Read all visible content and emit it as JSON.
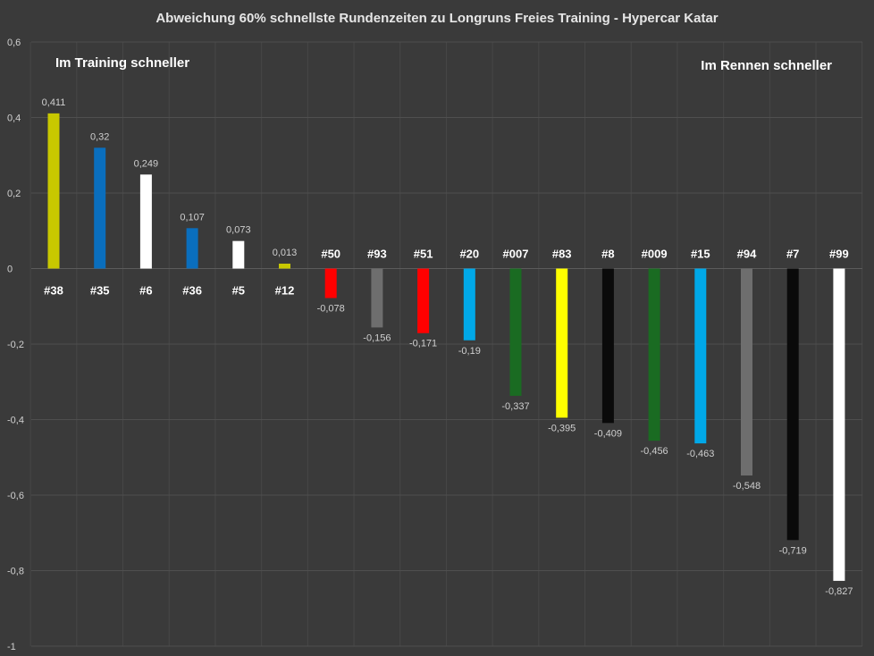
{
  "chart_data": {
    "type": "bar",
    "title": "Abweichung 60% schnellste Rundenzeiten zu Longruns Freies Training - Hypercar Katar",
    "xlabel": "",
    "ylabel": "",
    "ylim": [
      -1,
      0.6
    ],
    "yticks": [
      "0,6",
      "0,4",
      "0,2",
      "0",
      "-0,2",
      "-0,4",
      "-0,6",
      "-0,8",
      "-1"
    ],
    "ytick_values": [
      0.6,
      0.4,
      0.2,
      0,
      -0.2,
      -0.4,
      -0.6,
      -0.8,
      -1
    ],
    "grid": true,
    "legend": "none",
    "annotations": {
      "left": "Im Training schneller",
      "right": "Im Rennen schneller"
    },
    "categories": [
      "#38",
      "#35",
      "#6",
      "#36",
      "#5",
      "#12",
      "#50",
      "#93",
      "#51",
      "#20",
      "#007",
      "#83",
      "#8",
      "#009",
      "#15",
      "#94",
      "#7",
      "#99"
    ],
    "values": [
      0.411,
      0.32,
      0.249,
      0.107,
      0.073,
      0.013,
      -0.078,
      -0.156,
      -0.171,
      -0.19,
      -0.337,
      -0.395,
      -0.409,
      -0.456,
      -0.463,
      -0.548,
      -0.719,
      -0.827
    ],
    "value_labels": [
      "0,411",
      "0,32",
      "0,249",
      "0,107",
      "0,073",
      "0,013",
      "-0,078",
      "-0,156",
      "-0,171",
      "-0,19",
      "-0,337",
      "-0,395",
      "-0,409",
      "-0,456",
      "-0,463",
      "-0,548",
      "-0,719",
      "-0,827"
    ],
    "colors": [
      "#c8c800",
      "#0a6ebd",
      "#ffffff",
      "#0a6ebd",
      "#ffffff",
      "#c8c800",
      "#ff0000",
      "#6e6e6e",
      "#ff0000",
      "#00a8e8",
      "#1a6b22",
      "#ffff00",
      "#0a0a0a",
      "#1a6b22",
      "#00a8e8",
      "#6e6e6e",
      "#0a0a0a",
      "#ffffff"
    ]
  }
}
